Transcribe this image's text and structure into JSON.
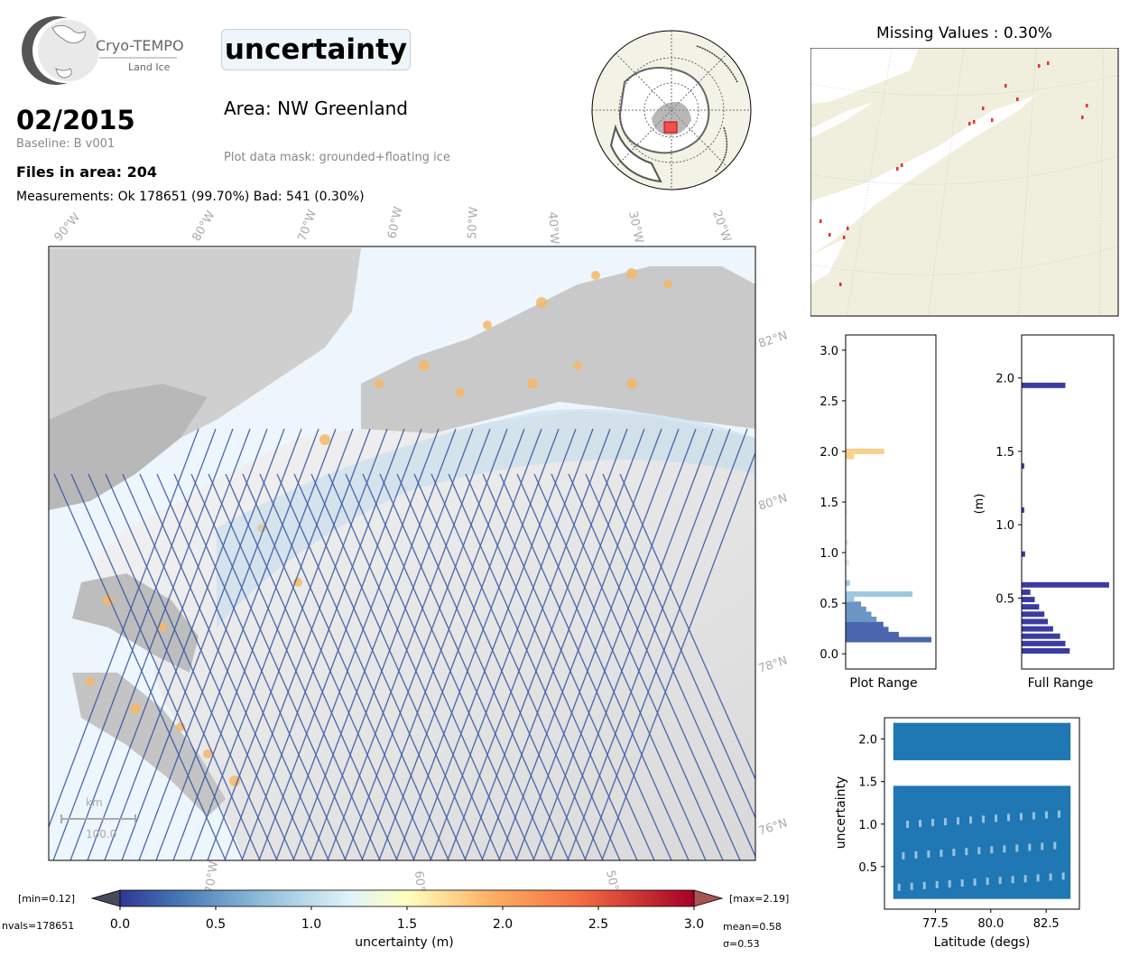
{
  "header": {
    "logo_text": "Cryo-TEMPO",
    "logo_subtext": "Land Ice",
    "title": "uncertainty",
    "date": "02/2015",
    "baseline": "Baseline: B v001",
    "files_in_area": "Files in area: 204",
    "measurements": "Measurements: Ok 178651 (99.70%) Bad: 541 (0.30%)",
    "area": "Area: NW Greenland",
    "plot_mask": "Plot data mask: grounded+floating ice"
  },
  "map": {
    "lon_labels": [
      "90°W",
      "80°W",
      "70°W",
      "60°W",
      "50°W",
      "40°W",
      "30°W",
      "20°W"
    ],
    "lat_labels": [
      "82°N",
      "80°N",
      "78°N",
      "76°N"
    ],
    "bottom_labels": [
      "70°W",
      "60°W",
      "50°W"
    ],
    "scale_unit": "km",
    "scale_value": "100.0",
    "colors": {
      "ocean": "#eef6fd",
      "track": "#2f4fa0",
      "orange": "#f4b86a"
    }
  },
  "colorbar": {
    "min_label": "[min=0.12]",
    "max_label": "[max=2.19]",
    "nvals": "nvals=178651",
    "mean": "mean=0.58",
    "sigma": "σ=0.53",
    "label": "uncertainty (m)",
    "ticks": [
      "0.0",
      "0.5",
      "1.0",
      "1.5",
      "2.0",
      "2.5",
      "3.0"
    ]
  },
  "missing_values": {
    "title": "Missing Values : 0.30%"
  },
  "histograms": {
    "plot_range": {
      "xlabel": "Plot Range",
      "ticks": [
        "0.0",
        "0.5",
        "1.0",
        "1.5",
        "2.0",
        "2.5",
        "3.0"
      ],
      "ylim": [
        0.0,
        3.0
      ]
    },
    "full_range": {
      "xlabel": "Full Range",
      "ylabel": "(m)",
      "ticks": [
        "0.5",
        "1.0",
        "1.5",
        "2.0"
      ],
      "ylim": [
        0.12,
        2.19
      ]
    }
  },
  "chart_data": [
    {
      "type": "bar",
      "orientation": "horizontal",
      "xlabel": "Plot Range",
      "ylim": [
        0.0,
        3.0
      ],
      "bins": [
        {
          "y": 0.14,
          "count": 1.0
        },
        {
          "y": 0.19,
          "count": 0.62
        },
        {
          "y": 0.24,
          "count": 0.5
        },
        {
          "y": 0.29,
          "count": 0.44
        },
        {
          "y": 0.34,
          "count": 0.36
        },
        {
          "y": 0.39,
          "count": 0.3
        },
        {
          "y": 0.44,
          "count": 0.24
        },
        {
          "y": 0.49,
          "count": 0.18
        },
        {
          "y": 0.54,
          "count": 0.1
        },
        {
          "y": 0.59,
          "count": 0.78
        },
        {
          "y": 0.7,
          "count": 0.05
        },
        {
          "y": 0.9,
          "count": 0.04
        },
        {
          "y": 1.1,
          "count": 0.03
        },
        {
          "y": 1.4,
          "count": 0.02
        },
        {
          "y": 1.95,
          "count": 0.1
        },
        {
          "y": 2.0,
          "count": 0.45
        }
      ]
    },
    {
      "type": "bar",
      "orientation": "horizontal",
      "xlabel": "Full Range",
      "ylabel": "(m)",
      "ylim": [
        0.12,
        2.19
      ],
      "bins": [
        {
          "y": 0.14,
          "count": 0.55
        },
        {
          "y": 0.19,
          "count": 0.5
        },
        {
          "y": 0.24,
          "count": 0.44
        },
        {
          "y": 0.29,
          "count": 0.36
        },
        {
          "y": 0.34,
          "count": 0.3
        },
        {
          "y": 0.39,
          "count": 0.26
        },
        {
          "y": 0.44,
          "count": 0.2
        },
        {
          "y": 0.49,
          "count": 0.15
        },
        {
          "y": 0.54,
          "count": 0.1
        },
        {
          "y": 0.59,
          "count": 1.0
        },
        {
          "y": 0.8,
          "count": 0.04
        },
        {
          "y": 1.1,
          "count": 0.03
        },
        {
          "y": 1.4,
          "count": 0.03
        },
        {
          "y": 1.95,
          "count": 0.5
        }
      ]
    },
    {
      "type": "scatter",
      "xlabel": "Latitude (degs)",
      "ylabel": "uncertainty",
      "x_ticks": [
        "77.5",
        "80.0",
        "82.5"
      ],
      "y_ticks": [
        "0.5",
        "1.0",
        "1.5",
        "2.0"
      ],
      "xlim": [
        75.2,
        84.0
      ],
      "ylim": [
        0.0,
        2.25
      ],
      "bands": [
        {
          "x_range": [
            75.6,
            83.6
          ],
          "y_range": [
            0.12,
            1.45
          ]
        },
        {
          "x_range": [
            75.6,
            83.6
          ],
          "y_range": [
            1.75,
            2.19
          ]
        }
      ]
    }
  ]
}
